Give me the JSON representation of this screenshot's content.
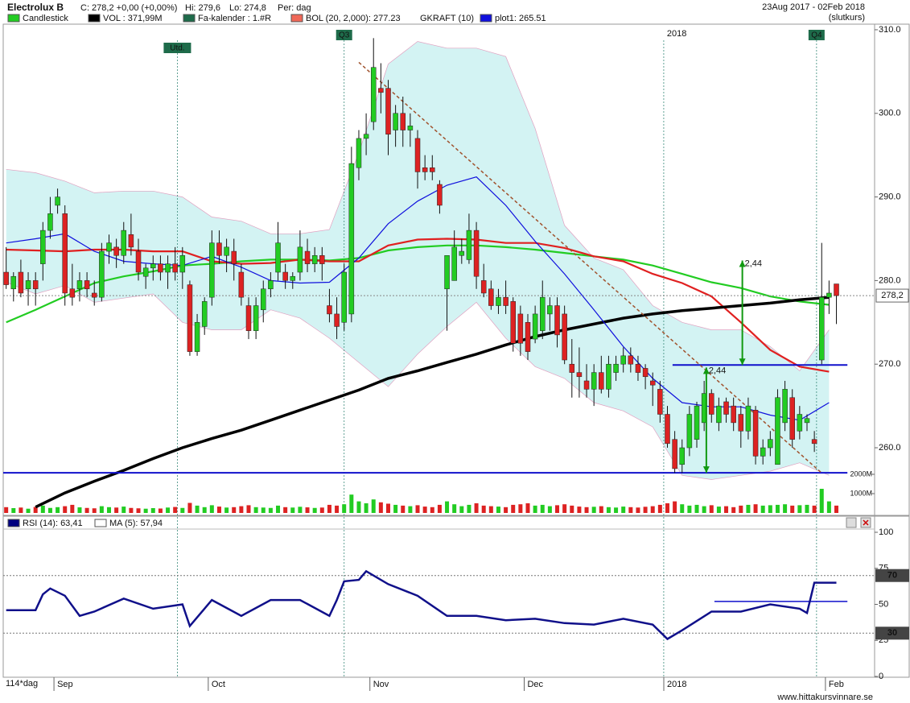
{
  "chart_data": {
    "type": "candlestick",
    "title": "Electrolux B",
    "info": [
      "C: 278,2 +0,00 (+0,00%)",
      "Hi: 279,6",
      "Lo: 274,8",
      "Per: dag"
    ],
    "date_range": "23Aug 2017 - 02Feb 2018",
    "price_basis": "(slutkurs)",
    "legend": [
      {
        "name": "Candlestick",
        "color": "#22cc22"
      },
      {
        "name": "VOL : 371,99M",
        "color": "#000000"
      },
      {
        "name": "Fa-kalender : 1.#R",
        "color": "#1e6b4a"
      },
      {
        "name": "BOL (20, 2,000): 277.23",
        "color": "#f06858"
      },
      {
        "name": "GKRAFT (10)"
      },
      {
        "name": "plot1: 265.51",
        "color": "#1010dd"
      }
    ],
    "up_color": "#22cc22",
    "down_color": "#dd2222",
    "open": [
      281,
      279,
      281,
      279,
      280,
      282,
      286,
      289,
      288,
      279,
      279,
      280,
      278.5,
      278,
      283.5,
      284,
      283,
      285.5,
      283.5,
      280.5,
      281.5,
      282,
      281,
      282,
      281,
      279.5,
      271.5,
      274.5,
      278,
      284.5,
      283,
      283.5,
      281,
      277,
      274,
      276.5,
      279,
      281,
      281,
      280,
      281,
      283.5,
      282,
      283,
      277,
      276,
      275,
      276,
      293.5,
      297,
      299,
      303,
      303,
      298,
      300,
      298,
      297,
      293.5,
      293.5,
      291.5,
      279,
      280,
      283,
      282.5,
      286,
      280,
      279,
      277,
      278,
      277.5,
      276,
      275,
      273,
      274,
      276,
      277,
      276,
      270,
      269,
      268,
      267,
      269,
      267,
      269,
      270,
      271,
      270,
      269.5,
      268,
      267,
      264,
      261,
      258,
      260,
      261,
      263,
      266.5,
      263,
      265.5,
      265,
      264,
      262,
      264.5,
      259,
      260,
      258,
      263,
      266,
      262,
      263,
      261,
      270.5,
      278,
      279.6
    ],
    "high": [
      284,
      281,
      282.5,
      281,
      281,
      287,
      290,
      291,
      289,
      282,
      281,
      281,
      280,
      284.5,
      285.5,
      285,
      287,
      288,
      285,
      282,
      283,
      283,
      283,
      284,
      284,
      280,
      276,
      278,
      286,
      286,
      285,
      285,
      282,
      278,
      278,
      280,
      281,
      287,
      282,
      281,
      286,
      285,
      284,
      284,
      279,
      278,
      282,
      296,
      298,
      300,
      309,
      306,
      304,
      301,
      302,
      300,
      298,
      295,
      295,
      292,
      283,
      286,
      285,
      288,
      287,
      282,
      280,
      279,
      280,
      278,
      277,
      276,
      277,
      280,
      278,
      278,
      277,
      273,
      272,
      270,
      270,
      271,
      271,
      271,
      272,
      272,
      271,
      270,
      269,
      268,
      265,
      262,
      261,
      265,
      265.5,
      268,
      267,
      266,
      266,
      266,
      265,
      266,
      265,
      261,
      262,
      267,
      268,
      267,
      265,
      264,
      262,
      284.5,
      280,
      279.6
    ],
    "low": [
      279,
      277.5,
      278,
      277,
      277,
      280,
      285,
      288,
      277,
      277,
      277.5,
      278,
      277,
      277.5,
      282,
      281.5,
      282,
      283,
      280,
      279,
      280,
      280,
      279,
      280,
      279,
      271,
      271,
      273.5,
      277,
      282,
      281,
      280,
      277,
      273,
      273,
      275,
      278,
      280,
      279,
      279,
      280,
      281,
      281,
      280,
      275,
      273,
      274,
      275,
      292,
      295,
      298,
      300,
      295,
      296,
      296,
      296,
      291,
      292,
      292,
      288,
      274,
      280,
      282,
      282,
      279,
      278,
      276.5,
      276,
      276,
      271.5,
      271,
      270.5,
      272.5,
      273,
      274,
      272,
      270,
      266,
      266,
      266,
      265,
      266.5,
      266,
      268,
      269,
      269,
      268,
      267,
      265,
      263,
      260,
      257,
      257,
      259,
      260,
      262,
      263,
      262,
      263,
      262,
      260,
      261,
      258,
      258,
      259,
      258,
      262,
      260,
      261,
      262,
      259.5,
      270,
      276,
      274.8
    ],
    "close": [
      279.5,
      280.5,
      278.5,
      280,
      279,
      286,
      288,
      290,
      278.5,
      278,
      280,
      279,
      278,
      283.5,
      284.5,
      283,
      286,
      284,
      281,
      281.5,
      282,
      281,
      282,
      281,
      283,
      271.5,
      275,
      277.5,
      284.5,
      283,
      284,
      282,
      278,
      274,
      277,
      279,
      280,
      284.5,
      280,
      280.5,
      284,
      282,
      283,
      282,
      276,
      274.5,
      281,
      294,
      297,
      297.5,
      305.5,
      302.5,
      297.5,
      300,
      298,
      298.5,
      293,
      293,
      293,
      289,
      283,
      284,
      283.5,
      286,
      280.5,
      278.5,
      277,
      278,
      277,
      272.5,
      272.5,
      271.5,
      276,
      278,
      277,
      273.5,
      270.5,
      269,
      268.5,
      267,
      269,
      267,
      270,
      270,
      271,
      270,
      269,
      268.5,
      267.5,
      264,
      260.5,
      257.5,
      260,
      264,
      265,
      266.5,
      264,
      265,
      264,
      263,
      262,
      265,
      259,
      260,
      261,
      266,
      267,
      261,
      264,
      263.5,
      260.5,
      278,
      278.5,
      278.2
    ],
    "xlim": [
      -0.4,
      118.2
    ],
    "xticks": [
      {
        "value": 7,
        "label": "Sep"
      },
      {
        "value": 28,
        "label": "Oct"
      },
      {
        "value": 50,
        "label": "Nov"
      },
      {
        "value": 71,
        "label": "Dec"
      },
      {
        "value": 90,
        "label": "2018"
      },
      {
        "value": 112,
        "label": "Feb"
      }
    ],
    "period_label": "114*dag",
    "ylim": [
      252.2,
      310.67
    ],
    "yticks": [
      {
        "value": 260,
        "label": "260.0"
      },
      {
        "value": 270,
        "label": "270.0"
      },
      {
        "value": 280,
        "label": "280.0"
      },
      {
        "value": 290,
        "label": "290.0"
      },
      {
        "value": 300,
        "label": "300.0"
      },
      {
        "value": 310,
        "label": "310.0"
      }
    ],
    "volume": {
      "values": [
        300,
        250,
        280,
        220,
        310,
        380,
        260,
        300,
        350,
        420,
        290,
        260,
        240,
        350,
        300,
        280,
        330,
        260,
        240,
        220,
        250,
        230,
        280,
        310,
        260,
        520,
        380,
        300,
        400,
        330,
        280,
        300,
        350,
        400,
        300,
        280,
        260,
        380,
        300,
        280,
        320,
        290,
        260,
        280,
        420,
        380,
        450,
        950,
        600,
        500,
        700,
        550,
        480,
        420,
        380,
        350,
        400,
        330,
        300,
        420,
        600,
        450,
        350,
        420,
        500,
        380,
        350,
        330,
        300,
        420,
        450,
        500,
        380,
        420,
        350,
        400,
        450,
        380,
        330,
        300,
        320,
        350,
        300,
        280,
        330,
        300,
        280,
        320,
        350,
        420,
        500,
        600,
        450,
        380,
        420,
        350,
        400,
        330,
        350,
        300,
        380,
        420,
        450,
        380,
        400,
        420,
        450,
        380,
        400,
        420,
        380,
        1250,
        600,
        380
      ],
      "ylim": [
        0,
        3000
      ],
      "yticks": [
        {
          "value": 1000,
          "label": "1000M"
        },
        {
          "value": 2000,
          "label": "2000M"
        }
      ]
    },
    "line_x": [
      0,
      4,
      8,
      12,
      16,
      20,
      24,
      28,
      32,
      36,
      40,
      44,
      48,
      52,
      56,
      60,
      64,
      68,
      72,
      76,
      80,
      84,
      88,
      92,
      96,
      100,
      104,
      108,
      112
    ],
    "lines": [
      {
        "color": "#22cc22",
        "values": [
          275.0,
          276.5,
          278.1,
          279.7,
          280.5,
          281.1,
          281.8,
          282.0,
          282.3,
          282.5,
          282.5,
          282.4,
          282.7,
          283.6,
          284.0,
          284.2,
          284.2,
          284.0,
          283.7,
          283.3,
          282.9,
          282.5,
          281.8,
          280.8,
          279.8,
          279.1,
          278.1,
          277.5,
          277.1
        ]
      },
      {
        "color": "#e02020",
        "values": [
          283.7,
          283.6,
          283.5,
          283.7,
          283.7,
          283.5,
          283.5,
          282.3,
          282.0,
          282.1,
          282.5,
          282.3,
          282.3,
          284.2,
          284.9,
          285.0,
          284.9,
          284.5,
          284.5,
          283.9,
          282.9,
          282.3,
          280.8,
          279.7,
          278.1,
          275.0,
          271.7,
          269.7,
          269.1
        ]
      },
      {
        "color": "#000000",
        "values": [
          null,
          252.9,
          254.6,
          256.0,
          257.3,
          258.7,
          260.0,
          261.1,
          262.1,
          263.3,
          264.5,
          265.7,
          266.9,
          268.3,
          269.2,
          270.2,
          271.2,
          272.3,
          273.3,
          274.1,
          274.8,
          275.5,
          276.0,
          276.4,
          276.7,
          277.0,
          277.3,
          277.7,
          278.0
        ]
      },
      {
        "color": "#1010dd",
        "values": [
          284.5,
          285.0,
          285.6,
          283.5,
          282.3,
          282.0,
          281.8,
          282.9,
          281.6,
          280.0,
          279.7,
          279.8,
          282.7,
          286.8,
          289.5,
          291.4,
          292.4,
          289.0,
          284.7,
          280.8,
          276.5,
          272.1,
          268.3,
          265.4,
          264.9,
          264.9,
          263.9,
          263.3,
          265.4
        ]
      }
    ],
    "bands": {
      "color": "#c8f0f0",
      "upper": [
        293.3,
        292.9,
        291.9,
        290.5,
        290.7,
        290.7,
        290.0,
        287.6,
        287.1,
        285.6,
        285.6,
        286.1,
        295.3,
        305.9,
        308.6,
        307.8,
        307.8,
        306.8,
        298.2,
        286.6,
        282.7,
        281.3,
        277.0,
        275.0,
        274.1,
        274.1,
        272.1,
        269.2,
        274.1
      ],
      "lower": [
        279.8,
        278.4,
        279.4,
        277.4,
        277.9,
        278.4,
        275.0,
        274.1,
        274.1,
        276.5,
        275.5,
        273.1,
        270.2,
        267.3,
        271.2,
        274.5,
        277.4,
        273.1,
        269.7,
        268.3,
        265.4,
        264.4,
        262.5,
        256.7,
        256.2,
        256.7,
        257.2,
        258.2,
        256.7
      ]
    },
    "hlines": [
      {
        "value": 257.0,
        "x": [
          -0.4,
          114.5
        ]
      },
      {
        "value": 269.9,
        "x": [
          90.7,
          114.5
        ]
      }
    ],
    "trendline": {
      "x": [
        48.0,
        111.1
      ],
      "values": [
        306.1,
        256.9
      ],
      "color": "#a0522d"
    },
    "annotations": [
      {
        "label": "2,44",
        "x": 100.2,
        "from": 269.9,
        "to": 282.4
      },
      {
        "label": "2,44",
        "x": 95.3,
        "from": 257.0,
        "to": 269.6
      }
    ],
    "last_price": {
      "value": 278.2,
      "label": "278,2"
    },
    "events": [
      {
        "label": "Utd.",
        "x": 23.3
      },
      {
        "label": "Q3",
        "x": 46.0
      },
      {
        "label": "2018",
        "x": 89.5
      },
      {
        "label": "Q4",
        "x": 110.3
      }
    ],
    "rsi": {
      "legend": [
        {
          "name": "RSI (14): 63,41",
          "color": "#000080"
        },
        {
          "name": "MA (5): 57,94",
          "color": "#ffffff"
        }
      ],
      "color": "#10108a",
      "x": [
        0,
        4,
        5,
        6,
        8,
        10,
        12,
        16,
        20,
        24,
        25,
        28,
        32,
        36,
        40,
        44,
        45,
        46,
        48,
        49,
        52,
        56,
        60,
        64,
        68,
        72,
        76,
        80,
        84,
        88,
        90,
        92,
        96,
        100,
        104,
        108,
        109,
        110,
        113
      ],
      "values": [
        46,
        46,
        57,
        61,
        56,
        42,
        45,
        54,
        47,
        50,
        35,
        53,
        42,
        53,
        53,
        42,
        53,
        66,
        67,
        73,
        64,
        56,
        42,
        42,
        39,
        40,
        37,
        36,
        40,
        36,
        26,
        32,
        45,
        45,
        50,
        47,
        44,
        65,
        65
      ],
      "ylim": [
        0,
        100
      ],
      "yticks": [
        0,
        25,
        50,
        75,
        100
      ],
      "levels": [
        70,
        30
      ],
      "hline": {
        "value": 52,
        "x": [
          96.4,
          114.5
        ]
      }
    },
    "footer": "www.hittakursvinnare.se"
  }
}
